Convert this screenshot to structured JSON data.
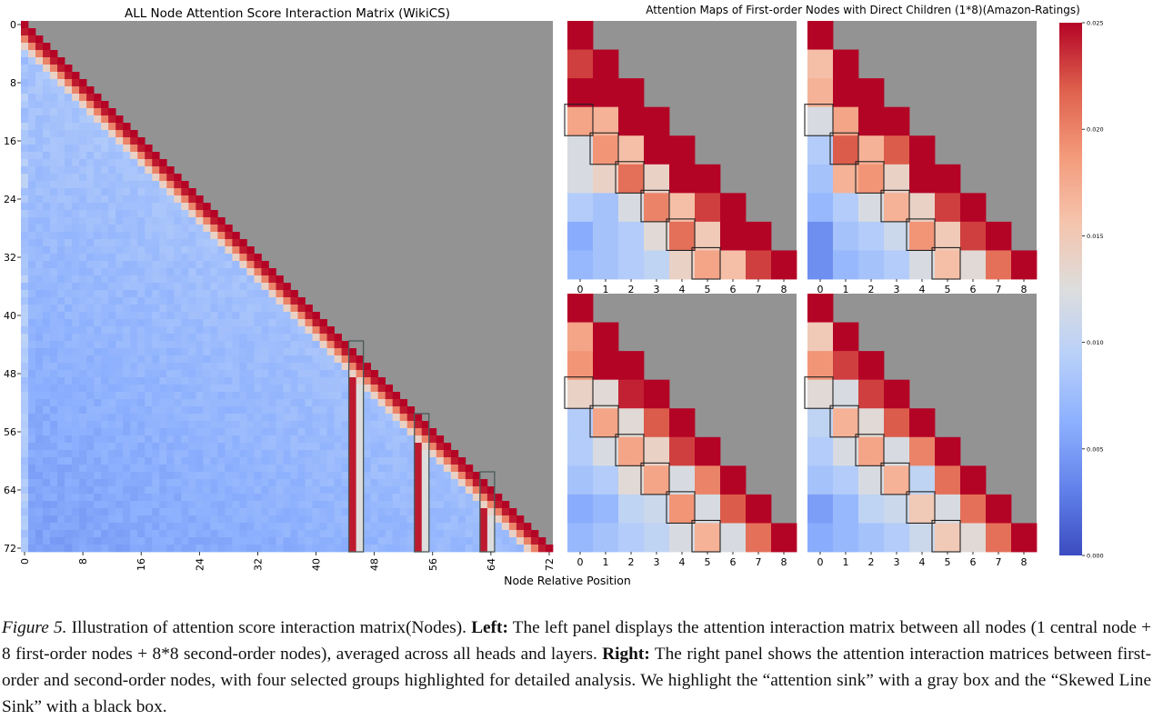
{
  "chart_data": [
    {
      "type": "heatmap",
      "title": "ALL Node Attention Score Interaction Matrix (WikiCS)",
      "xlabel": "Node Relative Position",
      "xticks": [
        "0",
        "8",
        "16",
        "24",
        "32",
        "40",
        "48",
        "56",
        "64",
        "72"
      ],
      "yticks": [
        "0",
        "8",
        "16",
        "24",
        "32",
        "40",
        "48",
        "56",
        "64",
        "72"
      ],
      "size": 73,
      "masked": "upper triangle shown in gray",
      "highlight_boxes": [
        {
          "label": "attention sink",
          "color": "gray",
          "columns": [
            45,
            46
          ],
          "rows": [
            44,
            72
          ]
        },
        {
          "label": "attention sink",
          "color": "gray",
          "columns": [
            54,
            55
          ],
          "rows": [
            54,
            72
          ]
        },
        {
          "label": "attention sink",
          "color": "gray",
          "columns": [
            63,
            64
          ],
          "rows": [
            62,
            72
          ]
        }
      ]
    },
    {
      "type": "heatmap",
      "title": "Attention Maps of First-order Nodes with Direct Children (1*8)(Amazon-Ratings)",
      "xticks": [
        "0",
        "1",
        "2",
        "3",
        "4",
        "5",
        "6",
        "7",
        "8"
      ],
      "colorbar": {
        "ticks": [
          "0.000",
          "0.005",
          "0.010",
          "0.015",
          "0.020",
          "0.025"
        ],
        "range": [
          0.0,
          0.025
        ],
        "colormap": "coolwarm"
      },
      "panels": [
        {
          "position": "top-left",
          "values": [
            [
              0.025
            ],
            [
              0.023,
              0.025
            ],
            [
              0.025,
              0.025,
              0.025
            ],
            [
              0.018,
              0.017,
              0.025,
              0.025
            ],
            [
              0.012,
              0.019,
              0.016,
              0.025,
              0.025
            ],
            [
              0.012,
              0.014,
              0.021,
              0.014,
              0.025,
              0.025
            ],
            [
              0.009,
              0.008,
              0.012,
              0.02,
              0.016,
              0.023,
              0.025
            ],
            [
              0.006,
              0.008,
              0.009,
              0.013,
              0.021,
              0.015,
              0.025,
              0.025
            ],
            [
              0.007,
              0.008,
              0.009,
              0.01,
              0.014,
              0.018,
              0.016,
              0.023,
              0.025
            ]
          ]
        },
        {
          "position": "top-right",
          "values": [
            [
              0.025
            ],
            [
              0.016,
              0.025
            ],
            [
              0.017,
              0.025,
              0.025
            ],
            [
              0.012,
              0.018,
              0.025,
              0.025
            ],
            [
              0.009,
              0.022,
              0.017,
              0.022,
              0.025
            ],
            [
              0.008,
              0.017,
              0.019,
              0.014,
              0.025,
              0.025
            ],
            [
              0.007,
              0.009,
              0.012,
              0.017,
              0.014,
              0.023,
              0.025
            ],
            [
              0.004,
              0.008,
              0.009,
              0.011,
              0.019,
              0.015,
              0.023,
              0.025
            ],
            [
              0.004,
              0.007,
              0.008,
              0.009,
              0.012,
              0.016,
              0.013,
              0.021,
              0.025
            ]
          ]
        },
        {
          "position": "bottom-left",
          "values": [
            [
              0.025
            ],
            [
              0.018,
              0.025
            ],
            [
              0.019,
              0.025,
              0.025
            ],
            [
              0.014,
              0.013,
              0.024,
              0.025
            ],
            [
              0.009,
              0.018,
              0.013,
              0.022,
              0.025
            ],
            [
              0.009,
              0.012,
              0.018,
              0.014,
              0.023,
              0.025
            ],
            [
              0.008,
              0.009,
              0.013,
              0.018,
              0.012,
              0.02,
              0.025
            ],
            [
              0.006,
              0.007,
              0.01,
              0.011,
              0.019,
              0.012,
              0.022,
              0.025
            ],
            [
              0.007,
              0.008,
              0.009,
              0.01,
              0.012,
              0.017,
              0.012,
              0.021,
              0.025
            ]
          ]
        },
        {
          "position": "bottom-right",
          "values": [
            [
              0.025
            ],
            [
              0.015,
              0.025
            ],
            [
              0.019,
              0.023,
              0.025
            ],
            [
              0.013,
              0.012,
              0.023,
              0.025
            ],
            [
              0.01,
              0.017,
              0.013,
              0.022,
              0.025
            ],
            [
              0.009,
              0.012,
              0.018,
              0.012,
              0.02,
              0.025
            ],
            [
              0.008,
              0.009,
              0.012,
              0.017,
              0.01,
              0.021,
              0.025
            ],
            [
              0.005,
              0.007,
              0.01,
              0.011,
              0.015,
              0.012,
              0.021,
              0.025
            ],
            [
              0.006,
              0.007,
              0.008,
              0.009,
              0.011,
              0.015,
              0.013,
              0.021,
              0.025
            ]
          ]
        }
      ],
      "highlight_boxes": "black boxes on the skewed line sink cells (row r+3, column r) in each panel"
    }
  ],
  "caption": {
    "figure": "Figure 5.",
    "intro": " Illustration of attention score interaction matrix(Nodes). ",
    "left_label": "Left:",
    "left_text": " The left panel displays the attention interaction matrix between all nodes (1 central node + 8 first-order nodes + 8*8 second-order nodes), averaged across all heads and layers. ",
    "right_label": "Right:",
    "right_text": " The right panel shows the attention interaction matrices between first-order and second-order nodes, with four selected groups highlighted for detailed analysis. We highlight the “attention sink” with a gray box and the “Skewed Line Sink” with a black box."
  }
}
